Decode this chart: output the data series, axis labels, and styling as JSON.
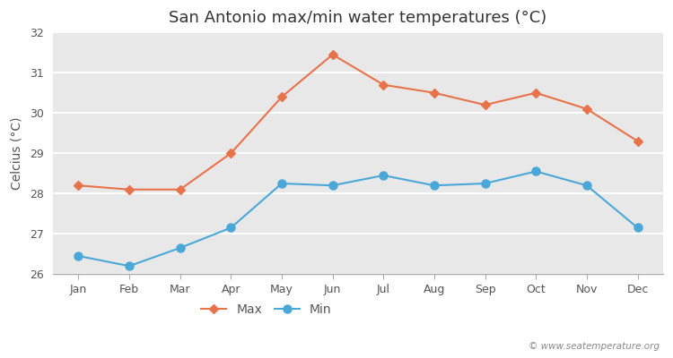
{
  "title": "San Antonio max/min water temperatures (°C)",
  "ylabel": "Celcius (°C)",
  "months": [
    "Jan",
    "Feb",
    "Mar",
    "Apr",
    "May",
    "Jun",
    "Jul",
    "Aug",
    "Sep",
    "Oct",
    "Nov",
    "Dec"
  ],
  "max_temps": [
    28.2,
    28.1,
    28.1,
    29.0,
    30.4,
    31.45,
    30.7,
    30.5,
    30.2,
    30.5,
    30.1,
    29.3
  ],
  "min_temps": [
    26.45,
    26.2,
    26.65,
    27.15,
    28.25,
    28.2,
    28.45,
    28.2,
    28.25,
    28.55,
    28.2,
    27.15
  ],
  "max_color": "#e8724a",
  "min_color": "#4aa8d8",
  "figure_bg_color": "#ffffff",
  "plot_bg_color": "#e8e8e8",
  "ylim": [
    26,
    32
  ],
  "yticks": [
    26,
    27,
    28,
    29,
    30,
    31,
    32
  ],
  "grid_color": "#ffffff",
  "legend_labels": [
    "Max",
    "Min"
  ],
  "watermark": "© www.seatemperature.org",
  "title_fontsize": 13,
  "axis_label_fontsize": 10,
  "tick_fontsize": 9,
  "legend_fontsize": 10
}
